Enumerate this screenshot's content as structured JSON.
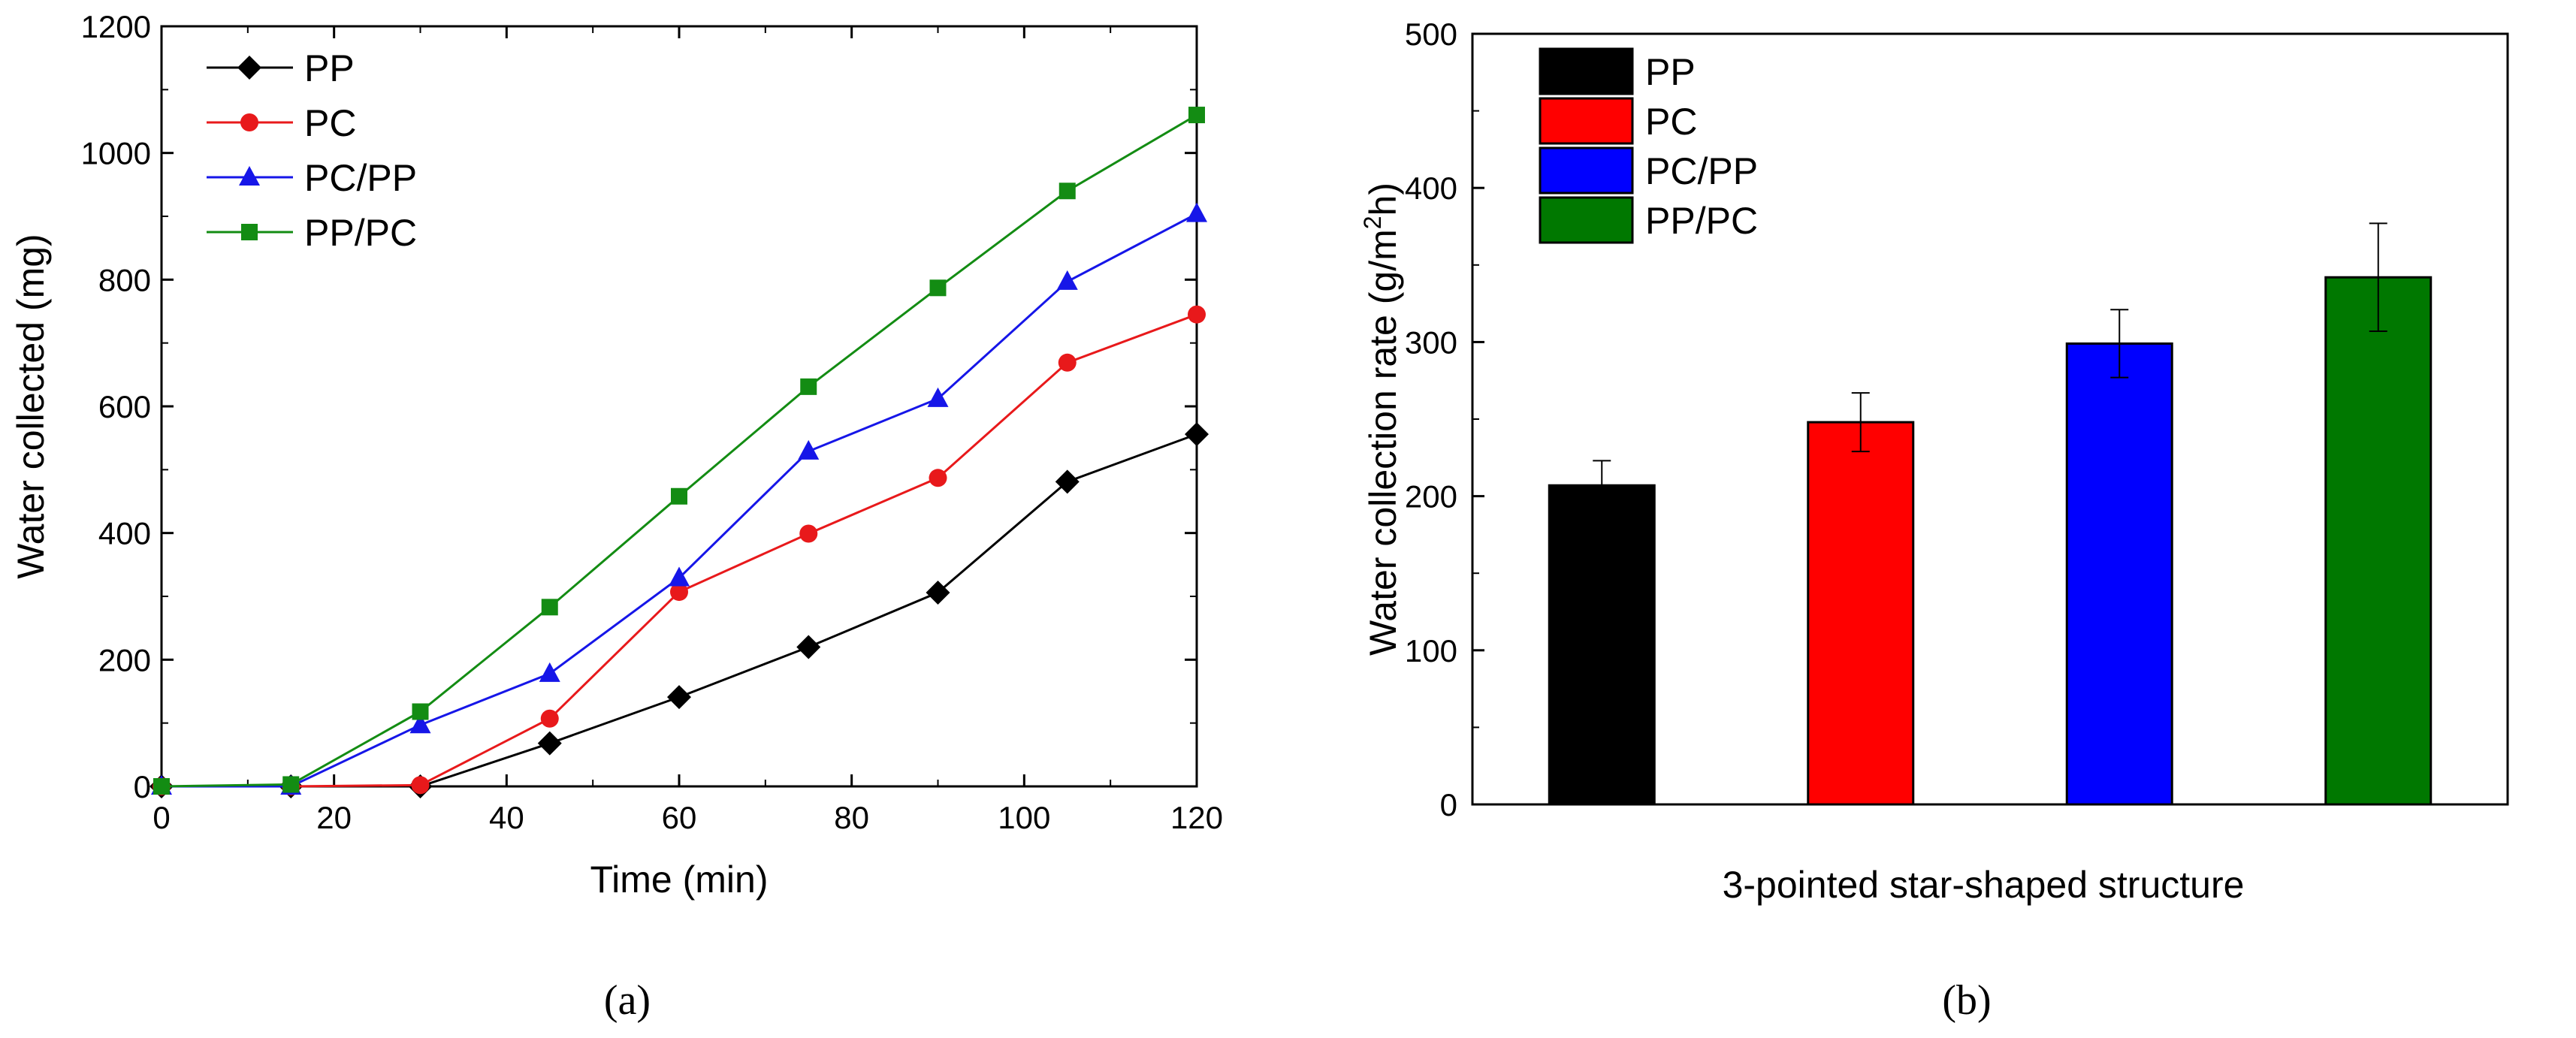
{
  "chart_data": [
    {
      "type": "line",
      "panel_label": "(a)",
      "xlabel": "Time (min)",
      "ylabel": "Water collected (mg)",
      "xlim": [
        0,
        120
      ],
      "ylim": [
        0,
        1200
      ],
      "xticks": [
        0,
        20,
        40,
        60,
        80,
        100,
        120
      ],
      "yticks": [
        0,
        200,
        400,
        600,
        800,
        1000,
        1200
      ],
      "x": [
        0,
        15,
        30,
        45,
        60,
        75,
        90,
        105,
        120
      ],
      "legend_position": "top-left",
      "series": [
        {
          "name": "PP",
          "color": "#000000",
          "marker": "diamond",
          "values": [
            0,
            0,
            0,
            68,
            141,
            220,
            306,
            481,
            556
          ]
        },
        {
          "name": "PC",
          "color": "#e8191b",
          "marker": "circle",
          "values": [
            0,
            0,
            2,
            107,
            307,
            399,
            487,
            669,
            745
          ]
        },
        {
          "name": "PC/PP",
          "color": "#1616e8",
          "marker": "triangle",
          "values": [
            0,
            0,
            97,
            178,
            329,
            529,
            612,
            797,
            904
          ]
        },
        {
          "name": "PP/PC",
          "color": "#138c13",
          "marker": "square",
          "values": [
            0,
            3,
            118,
            283,
            458,
            631,
            787,
            940,
            1060
          ]
        }
      ]
    },
    {
      "type": "bar",
      "panel_label": "(b)",
      "xlabel": "3-pointed star-shaped structure",
      "ylabel_main": "Water collection rate (g/m",
      "ylabel_sup": "2",
      "ylabel_end": "h)",
      "ylim": [
        0,
        500
      ],
      "yticks": [
        0,
        100,
        200,
        300,
        400,
        500
      ],
      "legend_position": "top-left",
      "categories": [
        "PP",
        "PC",
        "PC/PP",
        "PP/PC"
      ],
      "values": [
        207,
        248,
        299,
        342
      ],
      "errors": [
        16,
        19,
        22,
        35
      ],
      "colors": [
        "#000000",
        "#ff0000",
        "#0000ff",
        "#007800"
      ]
    }
  ]
}
